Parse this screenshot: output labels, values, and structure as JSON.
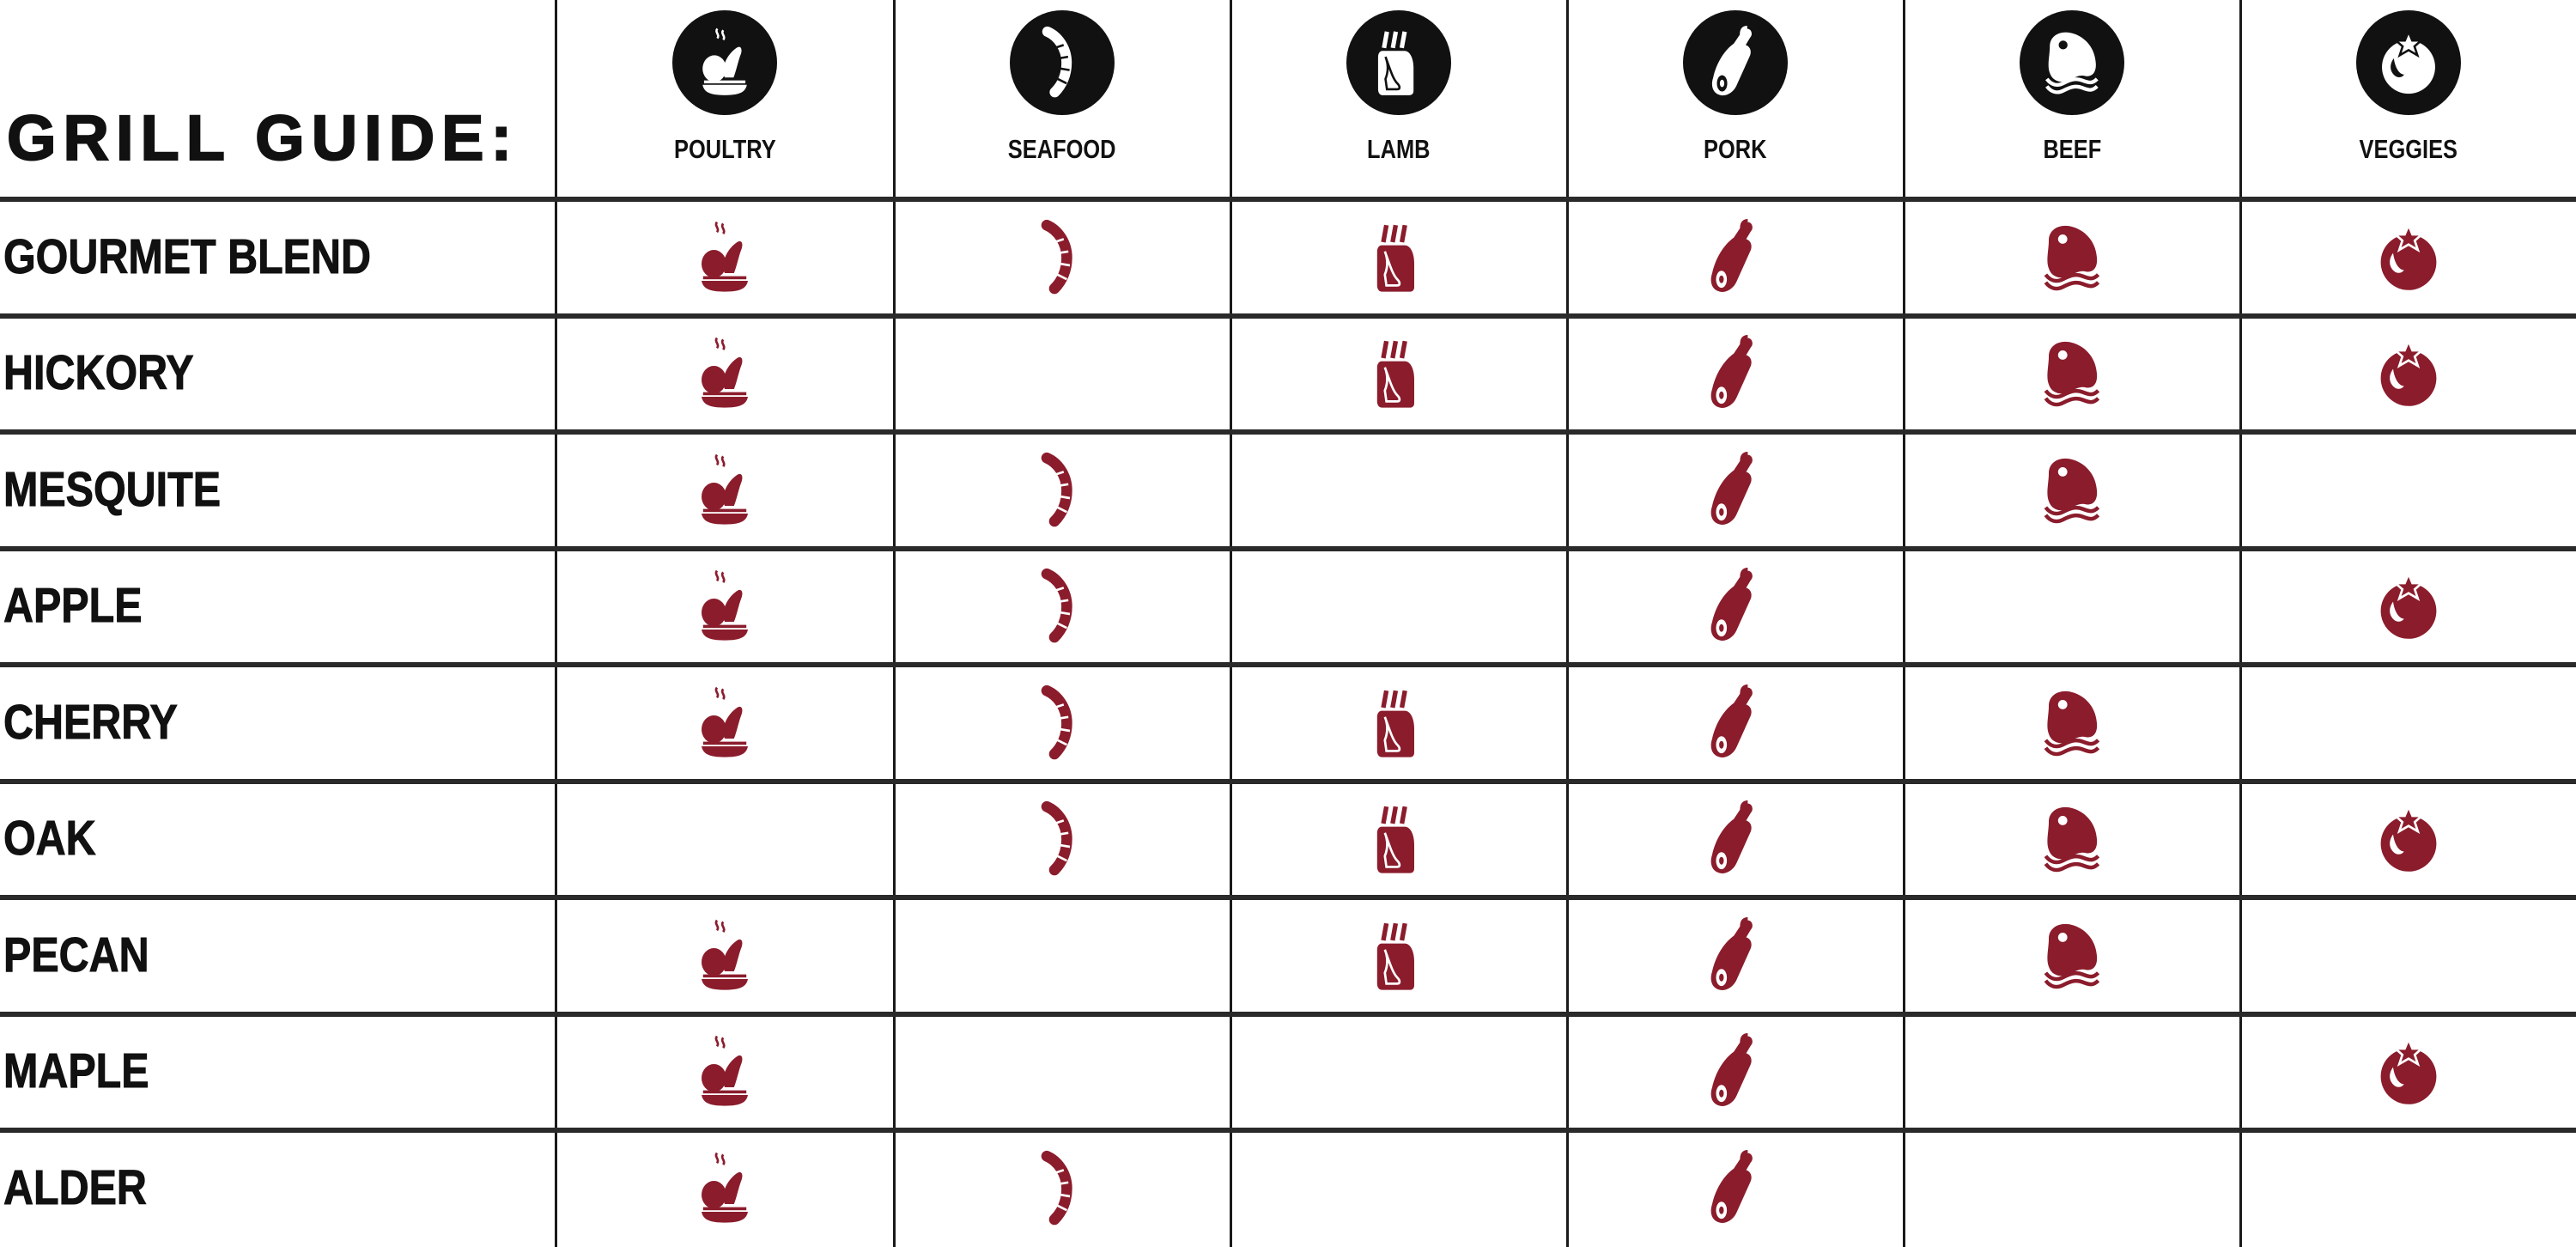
{
  "title": "GRILL GUIDE:",
  "colors": {
    "icon_red": "#8b1c2c",
    "header_badge": "#111111",
    "text": "#111111"
  },
  "columns": [
    {
      "key": "poultry",
      "label": "POULTRY",
      "icon": "poultry-icon"
    },
    {
      "key": "seafood",
      "label": "SEAFOOD",
      "icon": "shrimp-icon"
    },
    {
      "key": "lamb",
      "label": "LAMB",
      "icon": "lamb-rack-icon"
    },
    {
      "key": "pork",
      "label": "PORK",
      "icon": "ham-icon"
    },
    {
      "key": "beef",
      "label": "BEEF",
      "icon": "steak-icon"
    },
    {
      "key": "veggies",
      "label": "VEGGIES",
      "icon": "tomato-icon"
    }
  ],
  "rows": [
    {
      "label": "GOURMET BLEND",
      "pairs": [
        true,
        true,
        true,
        true,
        true,
        true
      ]
    },
    {
      "label": "HICKORY",
      "pairs": [
        true,
        false,
        true,
        true,
        true,
        true
      ]
    },
    {
      "label": "MESQUITE",
      "pairs": [
        true,
        true,
        false,
        true,
        true,
        false
      ]
    },
    {
      "label": "APPLE",
      "pairs": [
        true,
        true,
        false,
        true,
        false,
        true
      ]
    },
    {
      "label": "CHERRY",
      "pairs": [
        true,
        true,
        true,
        true,
        true,
        false
      ]
    },
    {
      "label": "OAK",
      "pairs": [
        false,
        true,
        true,
        true,
        true,
        true
      ]
    },
    {
      "label": "PECAN",
      "pairs": [
        true,
        false,
        true,
        true,
        true,
        false
      ]
    },
    {
      "label": "MAPLE",
      "pairs": [
        true,
        false,
        false,
        true,
        false,
        true
      ]
    },
    {
      "label": "ALDER",
      "pairs": [
        true,
        true,
        false,
        true,
        false,
        false
      ]
    }
  ]
}
